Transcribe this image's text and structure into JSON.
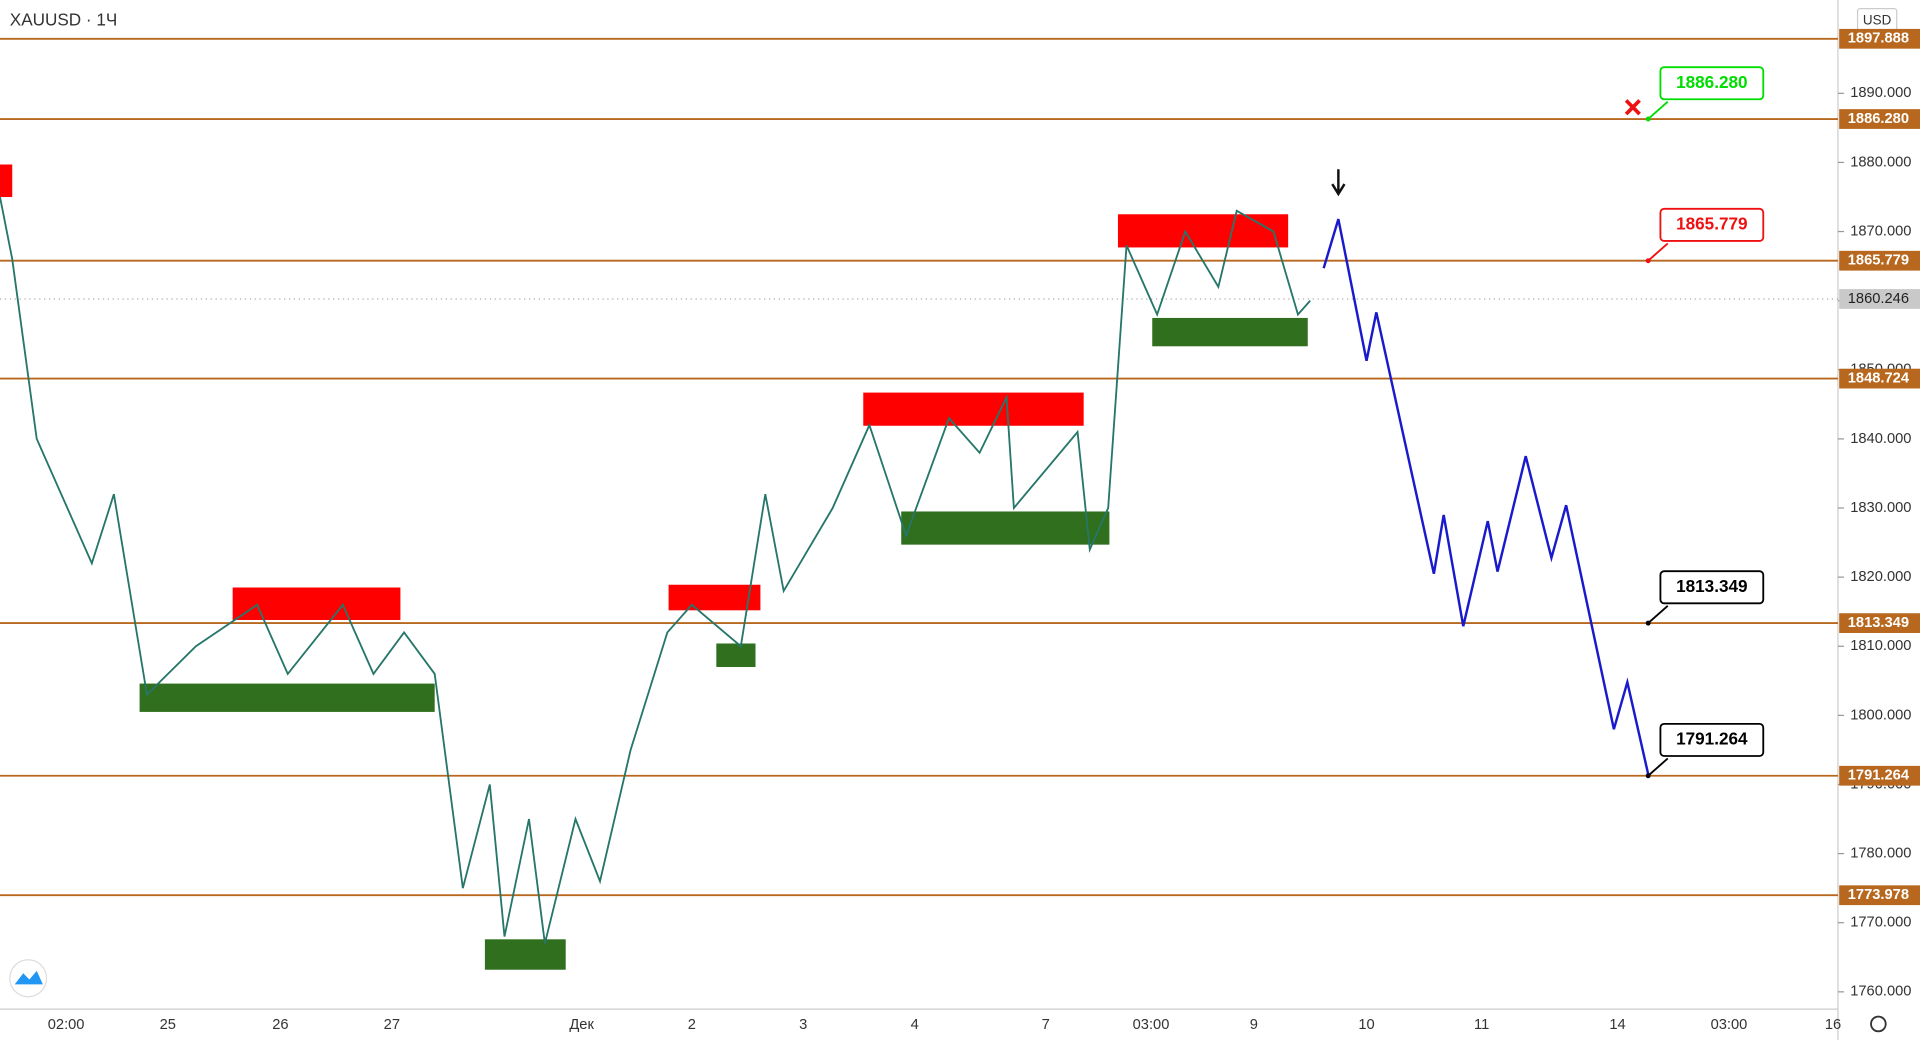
{
  "chart_data": {
    "type": "line",
    "title": "XAUUSD · 1Ч",
    "currency": "USD",
    "x_tick_labels": [
      "02:00",
      "25",
      "26",
      "27",
      "Дек",
      "2",
      "3",
      "4",
      "7",
      "03:00",
      "9",
      "10",
      "11",
      "14",
      "03:00",
      "16"
    ],
    "ylim": [
      1757.5,
      1903.5
    ],
    "yticks": [
      {
        "value": 1760,
        "label": "1760.000"
      },
      {
        "value": 1770,
        "label": "1770.000"
      },
      {
        "value": 1780,
        "label": "1780.000"
      },
      {
        "value": 1790,
        "label": "1790.000"
      },
      {
        "value": 1800,
        "label": "1800.000"
      },
      {
        "value": 1810,
        "label": "1810.000"
      },
      {
        "value": 1820,
        "label": "1820.000"
      },
      {
        "value": 1830,
        "label": "1830.000"
      },
      {
        "value": 1840,
        "label": "1840.000"
      },
      {
        "value": 1850,
        "label": "1850.000"
      },
      {
        "value": 1860,
        "label": "1860.000"
      },
      {
        "value": 1870,
        "label": "1870.000"
      },
      {
        "value": 1880,
        "label": "1880.000"
      },
      {
        "value": 1890,
        "label": "1890.000"
      }
    ],
    "levels": [
      {
        "value": 1897.888,
        "label": "1897.888"
      },
      {
        "value": 1886.28,
        "label": "1886.280"
      },
      {
        "value": 1865.779,
        "label": "1865.779"
      },
      {
        "value": 1848.724,
        "label": "1848.724"
      },
      {
        "value": 1813.349,
        "label": "1813.349"
      },
      {
        "value": 1791.264,
        "label": "1791.264"
      },
      {
        "value": 1773.978,
        "label": "1773.978"
      }
    ],
    "level_color": "#b8681e",
    "last_price": {
      "value": 1860.246,
      "label": "1860.246"
    },
    "series": [
      {
        "name": "XAUUSD",
        "color": "#26766a",
        "values": [
          1875,
          1866,
          1840,
          1830,
          1822,
          1832,
          1803,
          1810,
          1816,
          1806,
          1816,
          1806,
          1812,
          1806,
          1775,
          1790,
          1768,
          1785,
          1767,
          1785,
          1776,
          1795,
          1812,
          1816,
          1810,
          1832,
          1818,
          1830,
          1842,
          1826,
          1843,
          1838,
          1846,
          1830,
          1841,
          1824,
          1830,
          1868,
          1858,
          1870,
          1862,
          1873,
          1870,
          1858,
          1860
        ]
      },
      {
        "name": "Projection",
        "color": "#1a1acd",
        "values": [
          1864.7,
          1871.8,
          1851.3,
          1858.3,
          1820.5,
          1829.0,
          1812.9,
          1828.1,
          1820.8,
          1837.5,
          1822.8,
          1830.4,
          1798.0,
          1804.8,
          1791.5
        ]
      }
    ],
    "supply_zones": [
      [
        1879.7,
        1875.0
      ],
      [
        1818.5,
        1813.8
      ],
      [
        1818.9,
        1815.2
      ],
      [
        1846.7,
        1841.9
      ],
      [
        1872.5,
        1867.7
      ]
    ],
    "demand_zones": [
      [
        1804.6,
        1800.5
      ],
      [
        1810.4,
        1807.0
      ],
      [
        1829.5,
        1824.7
      ],
      [
        1857.5,
        1853.4
      ],
      [
        1767.6,
        1763.2
      ]
    ],
    "callouts": [
      {
        "value": 1886.28,
        "label": "1886.280",
        "color": "#00dd00"
      },
      {
        "value": 1865.779,
        "label": "1865.779",
        "color": "#ee1111"
      },
      {
        "value": 1813.349,
        "label": "1813.349",
        "color": "#000000"
      },
      {
        "value": 1791.264,
        "label": "1791.264",
        "color": "#000000"
      }
    ]
  }
}
